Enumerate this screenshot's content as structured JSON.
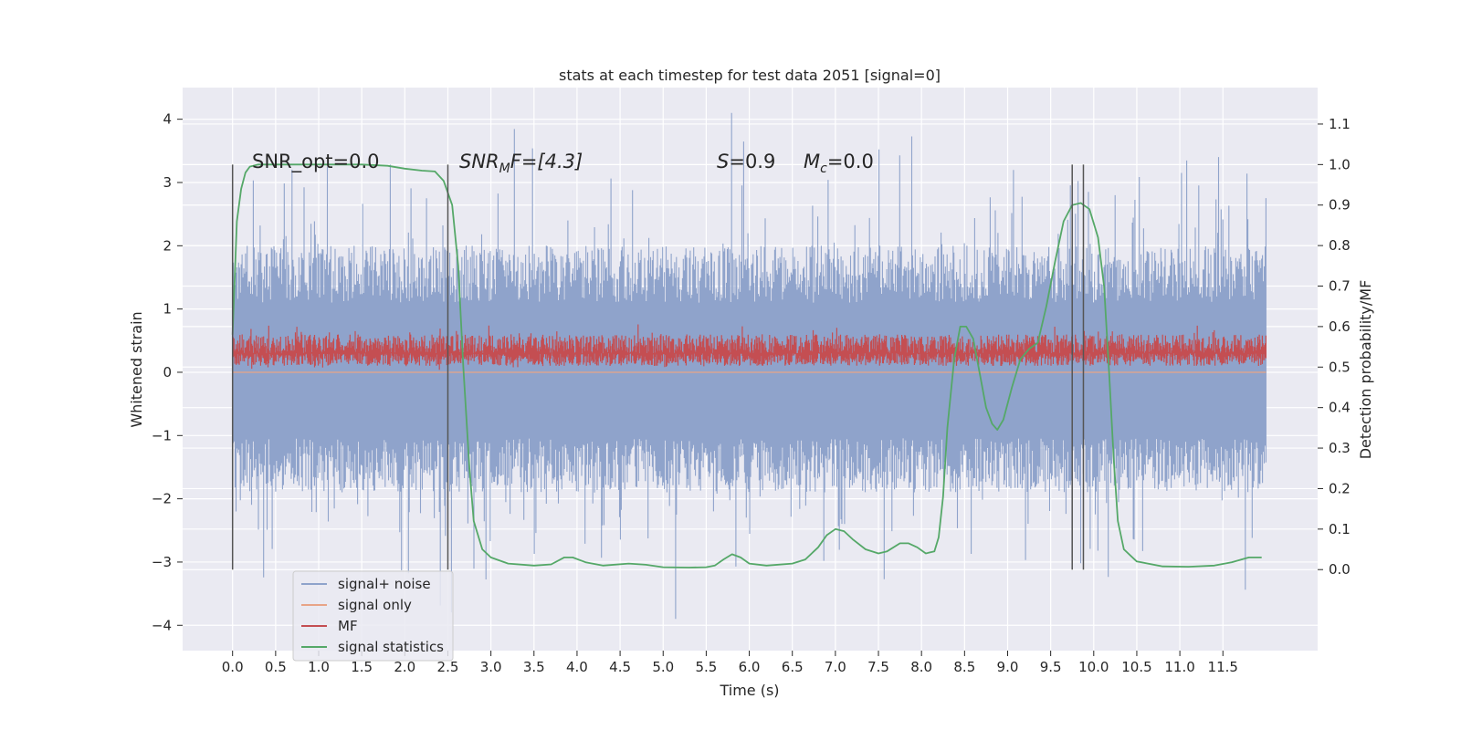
{
  "chart_data": {
    "type": "line",
    "title": "stats at each timestep for test data 2051 [signal=0]",
    "xlabel": "Time (s)",
    "ylabel": "Whitened strain",
    "y2label": "Detection probability/MF",
    "xlim": [
      -0.58,
      12.6
    ],
    "ylim": [
      -4.4,
      4.5
    ],
    "y2lim": [
      -0.2,
      1.19
    ],
    "x_ticks": [
      "0.0",
      "0.5",
      "1.0",
      "1.5",
      "2.0",
      "2.5",
      "3.0",
      "3.5",
      "4.0",
      "4.5",
      "5.0",
      "5.5",
      "6.0",
      "6.5",
      "7.0",
      "7.5",
      "8.0",
      "8.5",
      "9.0",
      "9.5",
      "10.0",
      "10.5",
      "11.0",
      "11.5"
    ],
    "y_ticks": [
      "4",
      "3",
      "2",
      "1",
      "0",
      "−1",
      "−2",
      "−3",
      "−4"
    ],
    "y2_ticks": [
      "1.1",
      "1.0",
      "0.9",
      "0.8",
      "0.7",
      "0.6",
      "0.5",
      "0.4",
      "0.3",
      "0.2",
      "0.1",
      "0.0"
    ],
    "grid": true,
    "legend_position": "lower-left",
    "annotations": {
      "snr_opt": "SNR_opt=0.0",
      "snr_mf_main": "SNR",
      "snr_mf_sub": "M",
      "snr_mf_rest": "F=[4.3]",
      "s_label": "S",
      "s_value": "=0.9",
      "mc_label": "M",
      "mc_sub": "c",
      "mc_value": "=0.0"
    },
    "vertical_markers": [
      0.0,
      2.5,
      9.75,
      9.88
    ],
    "series": [
      {
        "name": "signal+ noise",
        "color": "#8fa3cb",
        "axis": "left",
        "x_range": [
          0.0,
          12.0
        ],
        "envelope_typical": [
          -1.9,
          2.0
        ],
        "envelope_extreme": [
          -3.9,
          4.1
        ]
      },
      {
        "name": "signal only",
        "color": "#e8a487",
        "axis": "left",
        "x_range": [
          0.0,
          12.0
        ],
        "values_constant": 0.0
      },
      {
        "name": "MF",
        "color": "#c44e52",
        "axis": "left",
        "x_range": [
          0.0,
          12.0
        ],
        "envelope_typical": [
          0.1,
          0.6
        ],
        "envelope_extreme": [
          0.0,
          0.8
        ]
      },
      {
        "name": "signal statistics",
        "color": "#55a868",
        "axis": "right",
        "points": [
          [
            0.0,
            0.58
          ],
          [
            0.05,
            0.86
          ],
          [
            0.1,
            0.94
          ],
          [
            0.15,
            0.98
          ],
          [
            0.2,
            0.995
          ],
          [
            0.3,
            1.0
          ],
          [
            0.6,
            1.0
          ],
          [
            1.0,
            1.0
          ],
          [
            1.5,
            1.0
          ],
          [
            1.8,
            0.997
          ],
          [
            2.0,
            0.99
          ],
          [
            2.2,
            0.985
          ],
          [
            2.35,
            0.983
          ],
          [
            2.45,
            0.96
          ],
          [
            2.55,
            0.9
          ],
          [
            2.62,
            0.75
          ],
          [
            2.68,
            0.5
          ],
          [
            2.75,
            0.25
          ],
          [
            2.8,
            0.12
          ],
          [
            2.9,
            0.05
          ],
          [
            3.0,
            0.03
          ],
          [
            3.2,
            0.015
          ],
          [
            3.5,
            0.01
          ],
          [
            3.7,
            0.013
          ],
          [
            3.85,
            0.03
          ],
          [
            3.95,
            0.03
          ],
          [
            4.1,
            0.018
          ],
          [
            4.3,
            0.01
          ],
          [
            4.6,
            0.015
          ],
          [
            4.8,
            0.012
          ],
          [
            5.0,
            0.006
          ],
          [
            5.3,
            0.005
          ],
          [
            5.5,
            0.006
          ],
          [
            5.6,
            0.01
          ],
          [
            5.7,
            0.025
          ],
          [
            5.8,
            0.038
          ],
          [
            5.9,
            0.03
          ],
          [
            6.0,
            0.015
          ],
          [
            6.2,
            0.01
          ],
          [
            6.5,
            0.015
          ],
          [
            6.65,
            0.025
          ],
          [
            6.8,
            0.055
          ],
          [
            6.9,
            0.085
          ],
          [
            7.0,
            0.1
          ],
          [
            7.1,
            0.095
          ],
          [
            7.2,
            0.075
          ],
          [
            7.35,
            0.05
          ],
          [
            7.5,
            0.04
          ],
          [
            7.6,
            0.045
          ],
          [
            7.75,
            0.065
          ],
          [
            7.85,
            0.065
          ],
          [
            7.95,
            0.055
          ],
          [
            8.05,
            0.04
          ],
          [
            8.15,
            0.045
          ],
          [
            8.2,
            0.08
          ],
          [
            8.25,
            0.18
          ],
          [
            8.3,
            0.35
          ],
          [
            8.38,
            0.52
          ],
          [
            8.45,
            0.6
          ],
          [
            8.52,
            0.6
          ],
          [
            8.6,
            0.57
          ],
          [
            8.68,
            0.48
          ],
          [
            8.75,
            0.4
          ],
          [
            8.82,
            0.36
          ],
          [
            8.88,
            0.345
          ],
          [
            8.95,
            0.37
          ],
          [
            9.05,
            0.45
          ],
          [
            9.15,
            0.52
          ],
          [
            9.25,
            0.545
          ],
          [
            9.35,
            0.56
          ],
          [
            9.45,
            0.65
          ],
          [
            9.55,
            0.76
          ],
          [
            9.65,
            0.86
          ],
          [
            9.75,
            0.9
          ],
          [
            9.85,
            0.905
          ],
          [
            9.95,
            0.89
          ],
          [
            10.05,
            0.82
          ],
          [
            10.12,
            0.7
          ],
          [
            10.18,
            0.48
          ],
          [
            10.23,
            0.28
          ],
          [
            10.28,
            0.12
          ],
          [
            10.35,
            0.05
          ],
          [
            10.5,
            0.02
          ],
          [
            10.8,
            0.008
          ],
          [
            11.1,
            0.007
          ],
          [
            11.4,
            0.01
          ],
          [
            11.6,
            0.018
          ],
          [
            11.8,
            0.03
          ],
          [
            11.95,
            0.03
          ]
        ]
      }
    ]
  }
}
